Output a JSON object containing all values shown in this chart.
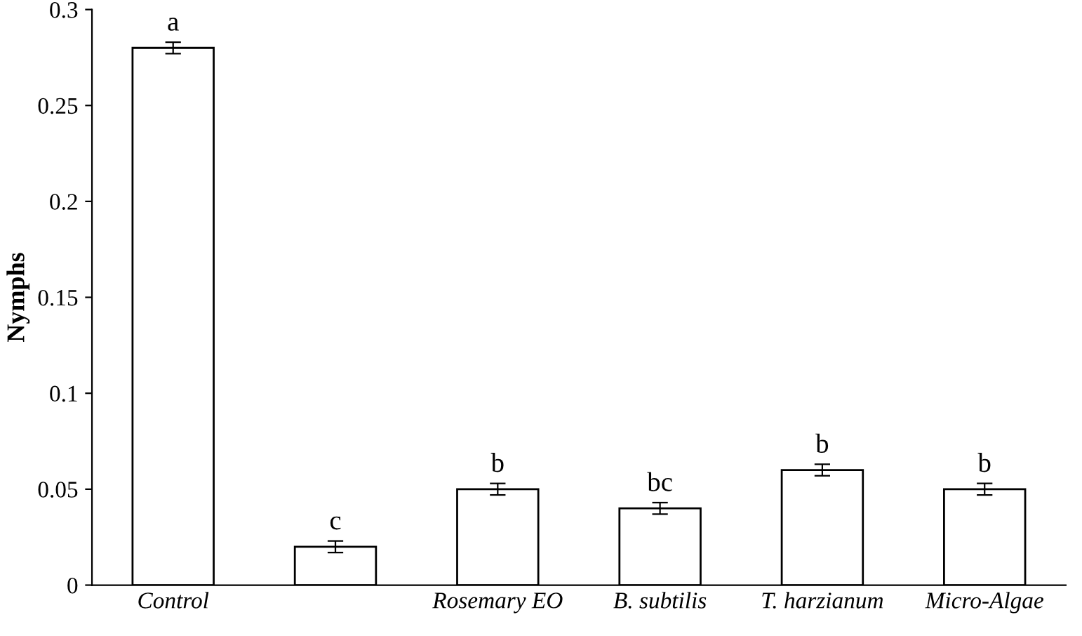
{
  "chart_data": {
    "type": "bar",
    "ylabel": "Nymphs",
    "categories": [
      "Control",
      null,
      "Rosemary EO",
      "B. subtilis",
      "T. harzianum",
      "Micro-Algae"
    ],
    "values": [
      0.28,
      0.02,
      0.05,
      0.04,
      0.06,
      0.05
    ],
    "errors": [
      0.003,
      0.003,
      0.003,
      0.003,
      0.003,
      0.003
    ],
    "color": "#ffffff",
    "ylim": [
      0,
      0.3
    ],
    "yticks": [
      0,
      0.05,
      {
        "value": 0.1,
        "label": "0.1"
      },
      0.15,
      {
        "value": 0.2,
        "label": "0.2"
      },
      0.25,
      {
        "value": 0.3,
        "label": "0.3"
      }
    ],
    "grid": false,
    "legend": false,
    "annotations": [
      {
        "text": "a",
        "x": "Control",
        "y": 0.283
      },
      {
        "text": "c",
        "y": 0.023
      },
      {
        "text": "b",
        "x": "Rosemary EO",
        "y": 0.053
      },
      {
        "text": "bc",
        "x": "B. subtilis",
        "y": 0.043
      },
      {
        "text": "b",
        "x": "T. harzianum",
        "y": 0.063
      },
      {
        "text": "b",
        "x": "Micro-Algae",
        "y": 0.053
      }
    ]
  }
}
